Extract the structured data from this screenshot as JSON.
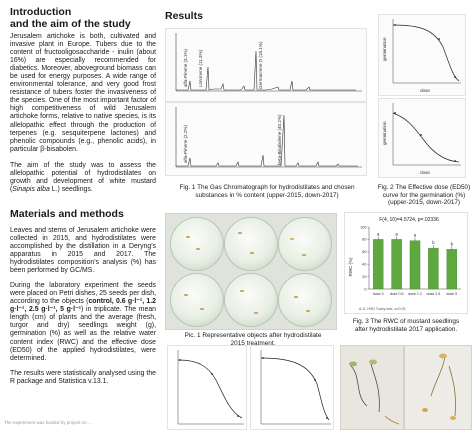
{
  "intro": {
    "heading_line1": "Introduction",
    "heading_line2": "and the aim of the study",
    "paragraph1": "Jerusalem artichoke is both, cultivated and invasive plant in Europe. Tubers due to the content of fructooligosaccharide - inulin (about 16%) are especially recommended for diabetics. Moreover, aboveground biomass can be used for energy purposes. A wide range of environmental tolerance, and very good frost resistance of tubers foster the invasiveness of the species. One of the most important factor of high competitiveness of wild Jerusalem artichoke forms, relative to native species, is its allelopathic effect through the production of terpenes (e.g. sesquiterpene lactones) and phenolic compounds (e.g., phenolic acids), in particular β-bisabolen.",
    "paragraph2_before_italic": "The aim of the study was to assess the allelopathic potential of hydrodistilates on growth and development of white mustard (",
    "paragraph2_italic": "Sinapis alba",
    "paragraph2_after_italic": " L.) seedlings."
  },
  "methods": {
    "heading": "Materials and methods",
    "paragraph1": "Leaves and stems of Jerusalem artichoke were collected in 2015, and hydrodistilates were accomplished by the distillation in a Deryng's apparatus in 2015 and 2017. The hydrodistilates composition's analysis (%) has been performed by GC/MS.",
    "paragraph2_intro": "During the laboratory experiment the seeds were placed on Petri dishes, 25 seeds per dish, according to the objects (",
    "paragraph2_bold": "control, 0.6 g·l⁻¹, 1.2 g·l⁻¹, 2.5 g·l⁻¹, 5 g·l⁻¹",
    "paragraph2_rest": ") in triplicate. The mean length (cm) of plants and the average (fresh, turgor and dry) seedlings weight (g), germination (%) as well as the relative water content index (RWC) and the effective dose (ED50) of the applied hydrodistilates, were determined.",
    "paragraph3": "The results were statistically analysed using the R package and Statistica v.13.1."
  },
  "results": {
    "heading": "Results"
  },
  "fig1": {
    "caption_line1": "Fig. 1 The Gas Chromatograph for hydrodistilates and chosen",
    "caption_line2": "substances in % content (upper-2015, down-2017)",
    "upper_labels": [
      "alfa-Pinene (3.1%)",
      "Limonene (11.3%)",
      "Germacrene D (15.1%)"
    ],
    "lower_labels": [
      "alfa-Pinene (2.2%)",
      "beta-Bisabolene (40.2%)"
    ]
  },
  "fig2": {
    "caption_line1": "Fig. 2 The Effective dose (ED50)",
    "caption_line2": "curve for the germination (%)",
    "caption_line3": "(upper-2015, down-2017)",
    "ylabel": "germination",
    "xlabel": "dose"
  },
  "fig3": {
    "caption_line1": "Fig. 3 The RWC of mustard seedlings",
    "caption_line2": "after hydrodistilate 2017 application.",
    "stat": "F(4, 10)=4.5724, p=.02336",
    "ylabel": "RWC (%)",
    "note": "A-G: HSD Tukey test, α=0.05",
    "chart_data": {
      "type": "bar",
      "categories": [
        "dose 0",
        "dose 0.6",
        "dose 1.2",
        "dose 2.5",
        "dose 5"
      ],
      "values": [
        80,
        80,
        78,
        66,
        64
      ],
      "letters": [
        "a",
        "a",
        "a",
        "b",
        "b"
      ],
      "ylim": [
        0,
        100
      ],
      "yticks": [
        "0",
        "20",
        "40",
        "60",
        "80",
        "100"
      ]
    }
  },
  "pic1": {
    "caption_line1": "Pic. 1 Representative objects after hydrodistilate",
    "caption_line2": "2015 treatment."
  },
  "footer": {
    "text": "The experiment was funded by project no. ..."
  },
  "colors": {
    "bar_green": "#5fa83f",
    "line_dark": "#222222"
  }
}
